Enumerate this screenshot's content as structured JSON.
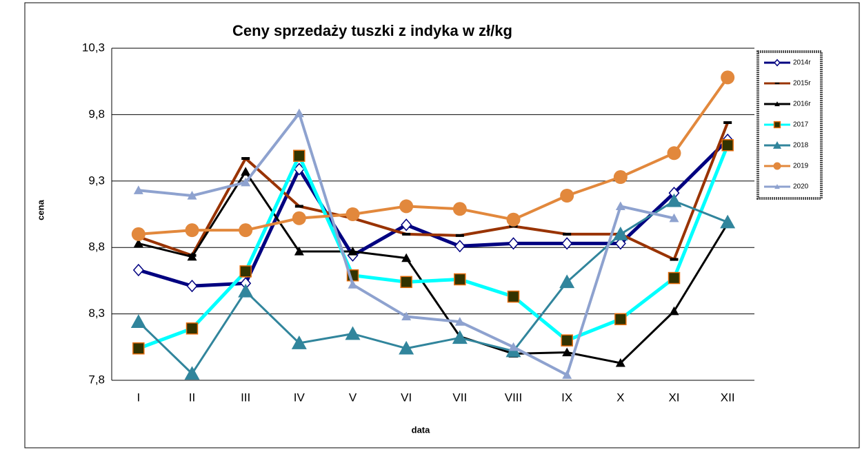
{
  "chart_data": {
    "type": "line",
    "title": "Ceny sprzedaży tuszki z indyka w zł/kg",
    "x_label": "data",
    "y_label": "cena",
    "categories": [
      "I",
      "II",
      "III",
      "IV",
      "V",
      "VI",
      "VII",
      "VIII",
      "IX",
      "X",
      "XI",
      "XII"
    ],
    "ylim": [
      7.8,
      10.3
    ],
    "yticks": [
      {
        "value": 7.8,
        "label": "7,8"
      },
      {
        "value": 8.3,
        "label": "8,3"
      },
      {
        "value": 8.8,
        "label": "8,8"
      },
      {
        "value": 9.3,
        "label": "9,3"
      },
      {
        "value": 9.8,
        "label": "9,8"
      },
      {
        "value": 10.3,
        "label": "10,3"
      }
    ],
    "grid": true,
    "legend": "right",
    "series": [
      {
        "name": "2014r",
        "color": "#000080",
        "width": 5,
        "marker": "diamond-open",
        "values": [
          8.63,
          8.51,
          8.53,
          9.39,
          8.74,
          8.97,
          8.81,
          8.83,
          8.83,
          8.83,
          9.21,
          9.61
        ]
      },
      {
        "name": "2015r",
        "color": "#993300",
        "width": 4,
        "marker": "dash",
        "values": [
          8.88,
          8.74,
          9.47,
          9.11,
          9.02,
          8.9,
          8.89,
          8.96,
          8.9,
          8.9,
          8.71,
          9.74
        ]
      },
      {
        "name": "2016r",
        "color": "#000000",
        "width": 3,
        "marker": "triangle",
        "values": [
          8.83,
          8.73,
          9.37,
          8.77,
          8.77,
          8.72,
          8.13,
          8.0,
          8.01,
          7.93,
          8.32,
          8.98
        ]
      },
      {
        "name": "2017",
        "color": "#00ffff",
        "width": 5,
        "marker": "square",
        "values": [
          8.04,
          8.19,
          8.62,
          9.49,
          8.59,
          8.54,
          8.56,
          8.43,
          8.1,
          8.26,
          8.57,
          9.57
        ]
      },
      {
        "name": "2018",
        "color": "#31859c",
        "width": 3,
        "marker": "triangle-big",
        "values": [
          8.24,
          7.85,
          8.47,
          8.08,
          8.15,
          8.04,
          8.12,
          8.02,
          8.54,
          8.9,
          9.15,
          8.99
        ]
      },
      {
        "name": "2019",
        "color": "#e2883c",
        "width": 4,
        "marker": "circle",
        "values": [
          8.9,
          8.93,
          8.93,
          9.02,
          9.05,
          9.11,
          9.09,
          9.01,
          9.19,
          9.33,
          9.51,
          10.08
        ]
      },
      {
        "name": "2020",
        "color": "#8ea2cf",
        "width": 4,
        "marker": "triangle",
        "values": [
          9.23,
          9.19,
          9.29,
          9.81,
          8.52,
          8.28,
          8.24,
          8.05,
          7.84,
          9.11,
          9.02,
          null
        ]
      }
    ]
  }
}
